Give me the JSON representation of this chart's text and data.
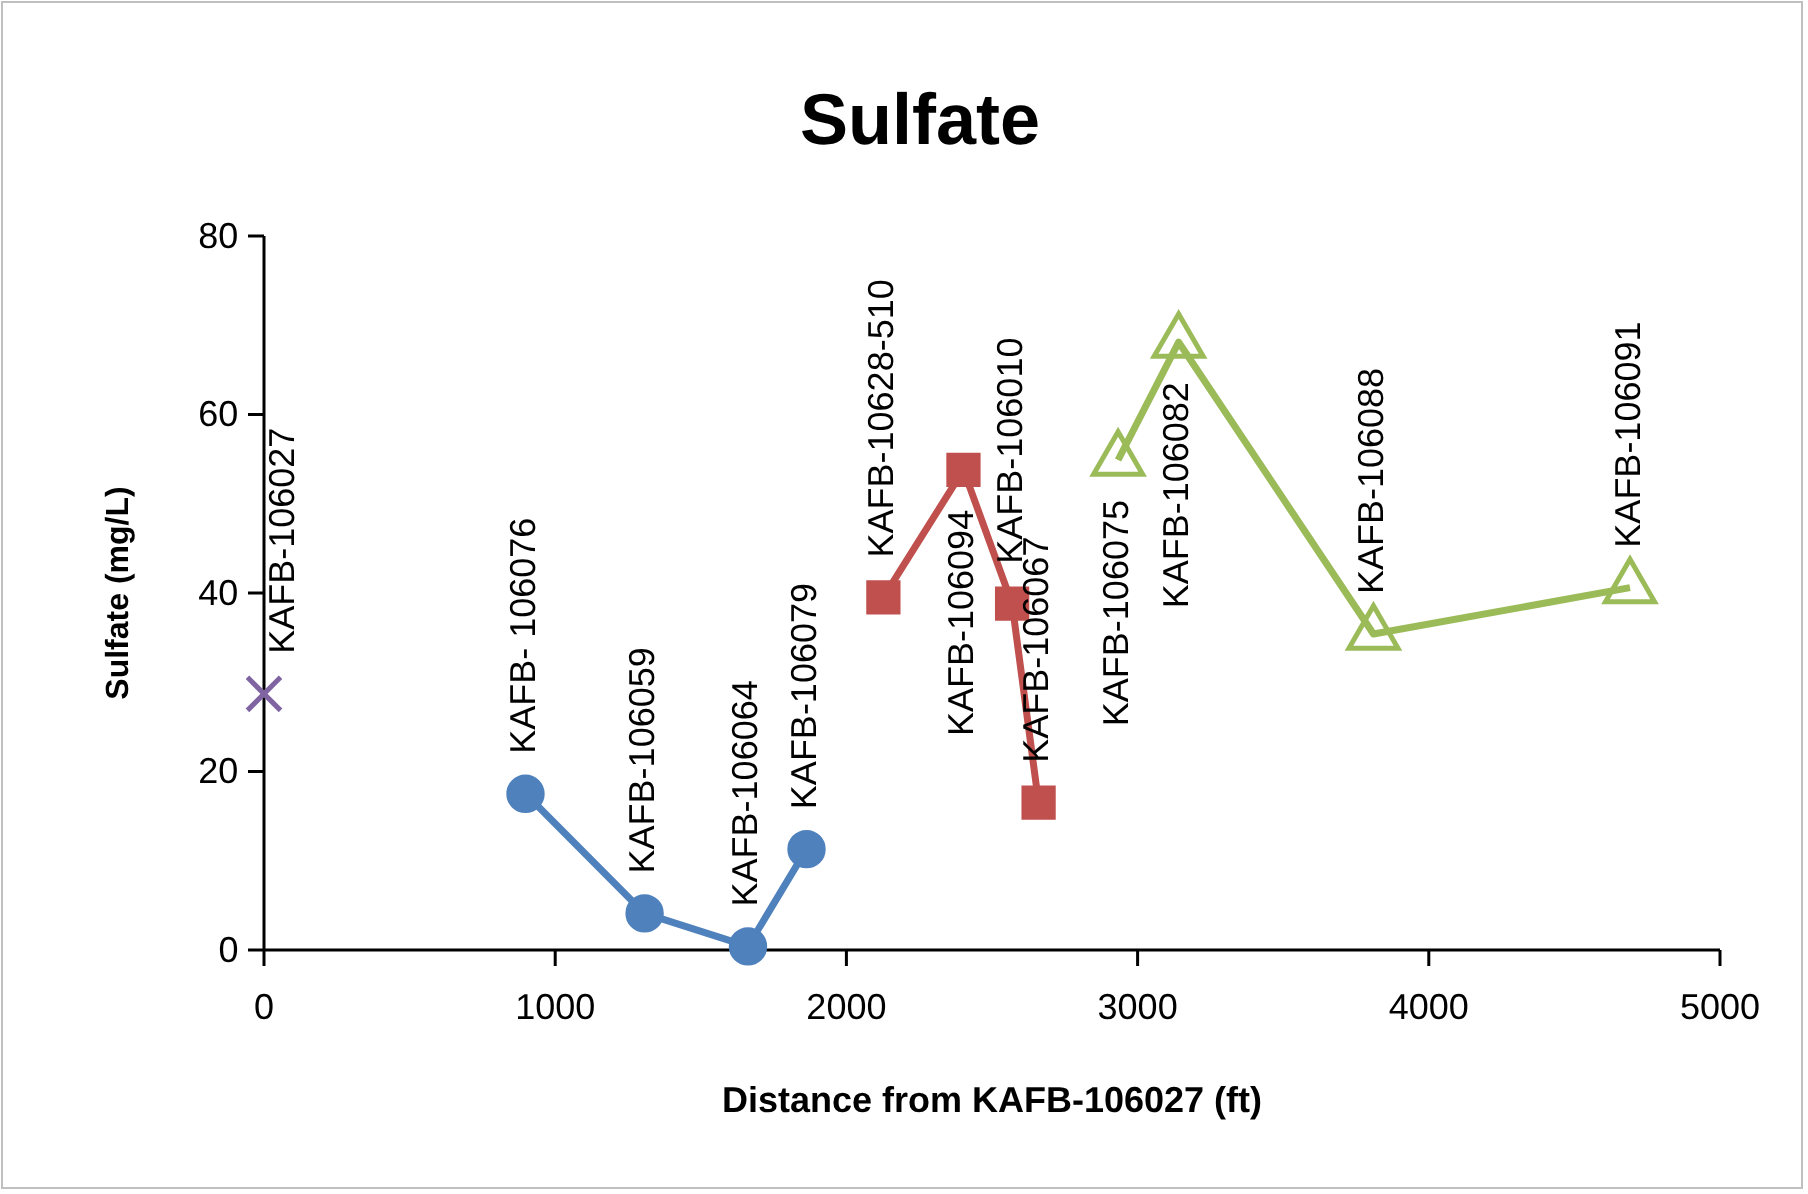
{
  "chart_data": {
    "type": "line",
    "title": "Sulfate",
    "xlabel": "Distance from KAFB-106027 (ft)",
    "ylabel": "Sulfate (mg/L)",
    "xlim": [
      0,
      5000
    ],
    "xticks": [
      0,
      1000,
      2000,
      3000,
      4000,
      5000
    ],
    "ylim": [
      0,
      80
    ],
    "yticks": [
      0,
      20,
      40,
      60,
      80
    ],
    "grid": false,
    "series": [
      {
        "type": "scatter",
        "marker": "cross",
        "color": "#8064a2",
        "x": [
          0
        ],
        "values": [
          28.7
        ]
      },
      {
        "marker": "circle",
        "color": "#4f81bd",
        "x": [
          898,
          1307,
          1662,
          1863
        ],
        "values": [
          17.5,
          4.1,
          0.4,
          11.3
        ]
      },
      {
        "marker": "square",
        "color": "#c0504d",
        "x": [
          2127,
          2402,
          2569,
          2660
        ],
        "values": [
          39.5,
          53.8,
          38.8,
          16.5
        ]
      },
      {
        "marker": "triangle",
        "color": "#9bbb59",
        "x": [
          2933,
          3141,
          3810,
          4691
        ],
        "values": [
          54.9,
          68.1,
          35.4,
          40.6
        ]
      }
    ],
    "annotations": [
      {
        "text": "KAFB-106027",
        "x": 0,
        "y": 28.7
      },
      {
        "text": "KAFB- 106076",
        "x": 898,
        "y": 17.5
      },
      {
        "text": "KAFB-106059",
        "x": 1307,
        "y": 4.1
      },
      {
        "text": "KAFB-106064",
        "x": 1662,
        "y": 0.4
      },
      {
        "text": "KAFB-106079",
        "x": 1863,
        "y": 11.3
      },
      {
        "text": "KAFB-10628-510",
        "x": 2127,
        "y": 39.5
      },
      {
        "text": "KAFB-106094",
        "x": 2402,
        "y": 53.8
      },
      {
        "text": "KAFB-106010",
        "x": 2569,
        "y": 38.8
      },
      {
        "text": "KAFB-106067",
        "x": 2660,
        "y": 16.5
      },
      {
        "text": "KAFB-106075",
        "x": 2933,
        "y": 54.9
      },
      {
        "text": "KAFB-106082",
        "x": 3141,
        "y": 68.1
      },
      {
        "text": "KAFB-106088",
        "x": 3810,
        "y": 35.4
      },
      {
        "text": "KAFB-106091",
        "x": 4691,
        "y": 40.6
      }
    ]
  }
}
